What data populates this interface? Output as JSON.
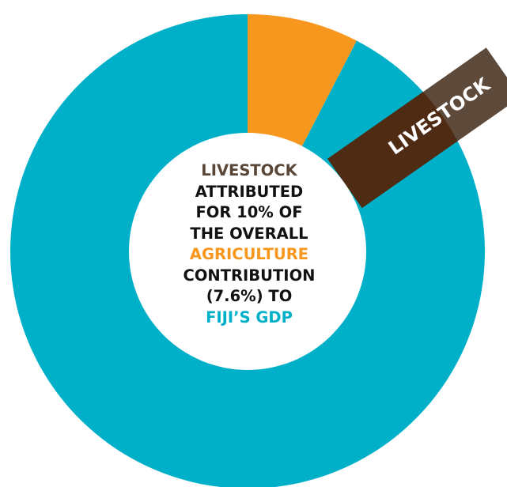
{
  "colors": {
    "outer_total": "#00B0C8",
    "agriculture": "#F7971E",
    "livestock_band": "#4E2B12",
    "livestock_tab": "#5E4A3A",
    "center_fill": "#FFFFFF",
    "text_dark": "#111111",
    "text_livestock": "#5A4636"
  },
  "chart_data": {
    "type": "pie",
    "slices": [
      {
        "label": "FIJI'S GDP",
        "value": 92.4,
        "color": "#00B0C8"
      },
      {
        "label": "AGRICULTURE",
        "value": 7.6,
        "color": "#F7971E"
      }
    ],
    "highlight": {
      "label": "LIVESTOCK",
      "share_of_agriculture": 10,
      "color": "#4E2B12"
    }
  },
  "tab": {
    "label": "LIVESTOCK"
  },
  "center": {
    "line1": "LIVESTOCK",
    "line2": "ATTRIBUTED",
    "line3": "FOR 10% OF",
    "line4": "THE OVERALL",
    "line5": "AGRICULTURE",
    "line6": "CONTRIBUTION",
    "line7": "(7.6%) TO",
    "line8": "FIJI’S GDP"
  }
}
